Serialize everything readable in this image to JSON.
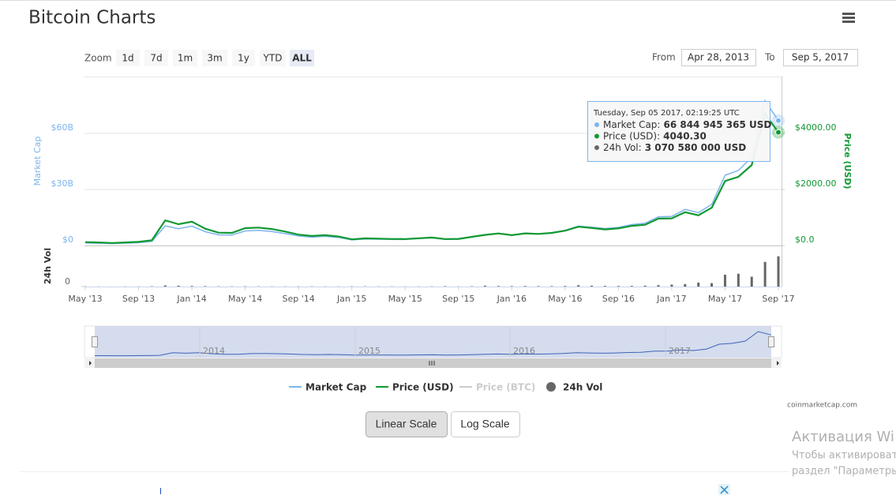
{
  "header": {
    "title": "Bitcoin Charts"
  },
  "zoom": {
    "label": "Zoom",
    "buttons": [
      "1d",
      "7d",
      "1m",
      "3m",
      "1y",
      "YTD",
      "ALL"
    ],
    "active": 6
  },
  "range": {
    "from_label": "From",
    "from": "Apr 28, 2013",
    "to_label": "To",
    "to": "Sep 5, 2017"
  },
  "chart_data": {
    "type": "line",
    "y_label": "Market Cap",
    "y2_label": "Price (USD)",
    "vol_label": "24h Vol",
    "x": [
      "2013-05",
      "2013-06",
      "2013-07",
      "2013-08",
      "2013-09",
      "2013-10",
      "2013-11",
      "2013-12",
      "2014-01",
      "2014-02",
      "2014-03",
      "2014-04",
      "2014-05",
      "2014-06",
      "2014-07",
      "2014-08",
      "2014-09",
      "2014-10",
      "2014-11",
      "2014-12",
      "2015-01",
      "2015-02",
      "2015-03",
      "2015-04",
      "2015-05",
      "2015-06",
      "2015-07",
      "2015-08",
      "2015-09",
      "2015-10",
      "2015-11",
      "2015-12",
      "2016-01",
      "2016-02",
      "2016-03",
      "2016-04",
      "2016-05",
      "2016-06",
      "2016-07",
      "2016-08",
      "2016-09",
      "2016-10",
      "2016-11",
      "2016-12",
      "2017-01",
      "2017-02",
      "2017-03",
      "2017-04",
      "2017-05",
      "2017-06",
      "2017-07",
      "2017-08",
      "2017-09"
    ],
    "xlim": [
      "2013-05",
      "2017-09"
    ],
    "xticks": [
      {
        "value": "2013-05",
        "label": "May '13"
      },
      {
        "value": "2013-09",
        "label": "Sep '13"
      },
      {
        "value": "2014-01",
        "label": "Jan '14"
      },
      {
        "value": "2014-05",
        "label": "May '14"
      },
      {
        "value": "2014-09",
        "label": "Sep '14"
      },
      {
        "value": "2015-01",
        "label": "Jan '15"
      },
      {
        "value": "2015-05",
        "label": "May '15"
      },
      {
        "value": "2015-09",
        "label": "Sep '15"
      },
      {
        "value": "2016-01",
        "label": "Jan '16"
      },
      {
        "value": "2016-05",
        "label": "May '16"
      },
      {
        "value": "2016-09",
        "label": "Sep '16"
      },
      {
        "value": "2017-01",
        "label": "Jan '17"
      },
      {
        "value": "2017-05",
        "label": "May '17"
      },
      {
        "value": "2017-09",
        "label": "Sep '17"
      }
    ],
    "ylim": [
      0,
      90000000000
    ],
    "yticks": [
      {
        "value": 0,
        "label": "$0"
      },
      {
        "value": 30000000000,
        "label": "$30B"
      },
      {
        "value": 60000000000,
        "label": "$60B"
      }
    ],
    "y2lim": [
      0,
      6000
    ],
    "y2ticks": [
      {
        "value": 0,
        "label": "$0.0"
      },
      {
        "value": 2000,
        "label": "$2000.00"
      },
      {
        "value": 4000,
        "label": "$4000.00"
      }
    ],
    "vol_ylim": [
      0,
      4000000000
    ],
    "vol_yticks": [
      0
    ],
    "grid": true,
    "series": [
      {
        "name": "Market Cap",
        "color": "#7cb5ec",
        "axis": "y",
        "values": [
          1350000000,
          1240000000,
          1000000000,
          1250000000,
          1500000000,
          2200000000,
          10500000000,
          9000000000,
          10400000000,
          7400000000,
          5700000000,
          5600000000,
          7800000000,
          8100000000,
          7500000000,
          6400000000,
          5100000000,
          4500000000,
          4900000000,
          4300000000,
          3000000000,
          3500000000,
          3400000000,
          3300000000,
          3200000000,
          3700000000,
          4100000000,
          3300000000,
          3400000000,
          4500000000,
          5600000000,
          6400000000,
          5500000000,
          6600000000,
          6300000000,
          6800000000,
          8100000000,
          10400000000,
          9800000000,
          9100000000,
          9700000000,
          11200000000,
          11900000000,
          15400000000,
          15600000000,
          19300000000,
          17600000000,
          22000000000,
          37600000000,
          40200000000,
          47200000000,
          77500000000,
          66844945365
        ]
      },
      {
        "name": "Price (USD)",
        "color": "#119933",
        "axis": "y2",
        "values": [
          120,
          110,
          90,
          110,
          130,
          190,
          900,
          760,
          850,
          600,
          460,
          450,
          620,
          640,
          590,
          500,
          390,
          340,
          370,
          320,
          220,
          255,
          245,
          235,
          230,
          260,
          285,
          230,
          237,
          310,
          380,
          430,
          370,
          435,
          415,
          450,
          530,
          670,
          625,
          575,
          610,
          700,
          740,
          960,
          970,
          1190,
          1080,
          1350,
          2300,
          2450,
          2870,
          4700,
          4040.3
        ]
      },
      {
        "name": "24h Vol",
        "color": "#666666",
        "axis": "vol",
        "values": [
          20000000,
          15000000,
          12000000,
          15000000,
          18000000,
          30000000,
          120000000,
          90000000,
          60000000,
          50000000,
          30000000,
          25000000,
          30000000,
          25000000,
          20000000,
          20000000,
          25000000,
          25000000,
          20000000,
          15000000,
          30000000,
          25000000,
          20000000,
          20000000,
          15000000,
          20000000,
          25000000,
          40000000,
          20000000,
          35000000,
          90000000,
          60000000,
          50000000,
          60000000,
          50000000,
          45000000,
          60000000,
          140000000,
          90000000,
          70000000,
          60000000,
          70000000,
          90000000,
          150000000,
          200000000,
          250000000,
          400000000,
          350000000,
          1200000000,
          1300000000,
          1000000000,
          2500000000,
          3070580000
        ]
      }
    ],
    "hidden_series": [
      "Price (BTC)"
    ],
    "tooltip": {
      "date": "Tuesday, Sep 05 2017, 02:19:25 UTC",
      "rows": [
        {
          "label": "Market Cap:",
          "value": "66 844 945 365 USD"
        },
        {
          "label": "Price (USD):",
          "value": "4040.30"
        },
        {
          "label": "24h Vol:",
          "value": "3 070 580 000 USD"
        }
      ]
    }
  },
  "navigator": {
    "labels": [
      "2014",
      "2015",
      "2016",
      "2017"
    ]
  },
  "credit": "coinmarketcap.com",
  "scale_buttons": [
    "Linear Scale",
    "Log Scale"
  ],
  "watermark": [
    "Активация Wi",
    "Чтобы активироват",
    "раздел \"Параметры\""
  ]
}
